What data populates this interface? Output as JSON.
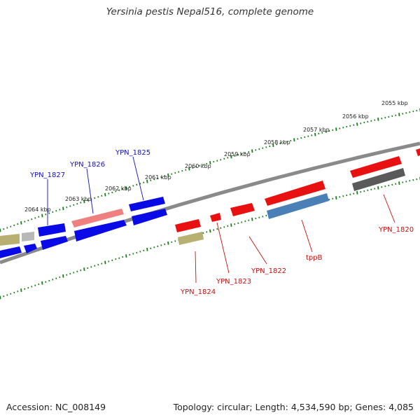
{
  "header": {
    "title": "Yersinia pestis Nepal516, complete genome"
  },
  "footer": {
    "accession": "Accession: NC_008149",
    "topology": "Topology: circular; Length: 4,534,590 bp; Genes: 4,085"
  },
  "colors": {
    "backbone": "#8a8a8a",
    "tick": "#1a7a1a",
    "gene_blue": "#0a0ae6",
    "gene_red": "#e81010",
    "gene_pink": "#ee8080",
    "gene_olive": "#b8b070",
    "gene_gray": "#b8b8b8",
    "gene_dark": "#5a5a5a",
    "gene_steel": "#4a7fb8",
    "label_blue": "#1010c0",
    "label_red": "#c81010"
  },
  "scale_labels": [
    "2055 kbp",
    "2056 kbp",
    "2057 kbp",
    "2058 kbp",
    "2059 kbp",
    "2060 kbp",
    "2061 kbp",
    "2062 kbp",
    "2063 kbp",
    "2064 kbp"
  ],
  "gene_labels_top": [
    "YPN_1827",
    "YPN_1826",
    "YPN_1825"
  ],
  "gene_labels_bottom": [
    "YPN_1824",
    "YPN_1823",
    "YPN_1822",
    "tppB",
    "YPN_1820"
  ]
}
